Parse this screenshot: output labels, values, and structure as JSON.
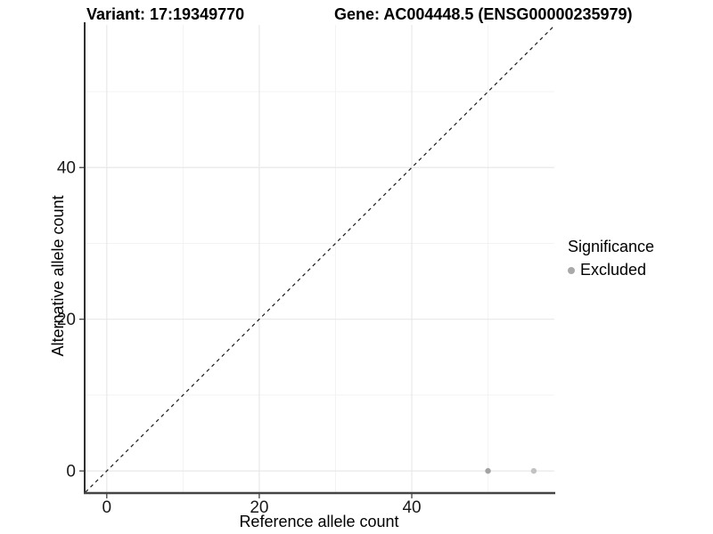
{
  "header": {
    "title_left": "Variant: 17:19349770",
    "title_right": "Gene: AC004448.5 (ENSG00000235979)"
  },
  "legend": {
    "title": "Significance",
    "items": [
      {
        "label": "Excluded",
        "color": "#a9a9a9"
      }
    ]
  },
  "chart_data": {
    "type": "scatter",
    "xlabel": "Reference allele count",
    "ylabel": "Alternative allele count",
    "x_ticks": [
      0,
      20,
      40
    ],
    "y_ticks": [
      0,
      20,
      40
    ],
    "x_minor_ticks": [
      10,
      30,
      50
    ],
    "y_minor_ticks": [
      10,
      30,
      50
    ],
    "xlim": [
      -2.9,
      58.7
    ],
    "ylim": [
      -2.8,
      58.8
    ],
    "grid": true,
    "legend_position": "right",
    "reference_line": {
      "type": "identity",
      "style": "dashed",
      "color": "#1a1a1a"
    },
    "series": [
      {
        "name": "Excluded",
        "points": [
          {
            "x": 50,
            "y": 0,
            "color": "#a3a3a3"
          },
          {
            "x": 56,
            "y": 0,
            "color": "#c2c2c2"
          }
        ]
      }
    ],
    "colors": {
      "major_grid": "#e8e8e8",
      "minor_grid": "#f3f3f3",
      "axis_line_left": "#1a1a1a",
      "axis_line_bottom": "#454545",
      "tick_mark": "#333333",
      "tick_label": "#1a1a1a"
    }
  }
}
